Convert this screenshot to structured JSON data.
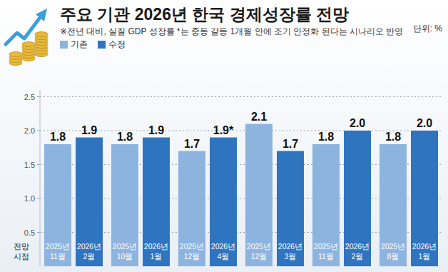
{
  "chart_data": {
    "type": "bar",
    "title": "주요 기관 2026년 한국 경제성장률 전망",
    "subtitle": "※전년 대비, 실질 GDP 성장률  *는 중동 갈등 1개월 안에 조기 안정화 된다는 시나리오 반영",
    "unit": "단위: %",
    "date_label": "전망 시점",
    "categories": [
      null,
      null,
      null,
      null,
      null,
      null
    ],
    "series": [
      {
        "name": "기존",
        "color": "#8db4df",
        "values": [
          1.8,
          1.8,
          1.7,
          2.1,
          1.8,
          1.8
        ],
        "value_labels": [
          "1.8",
          "1.8",
          "1.7",
          "2.1",
          "1.8",
          "1.8"
        ],
        "dates": [
          "2025년 11월",
          "2025년 10월",
          "2025년 12월",
          "2025년 12월",
          "2025년 11월",
          "2025년 8월"
        ]
      },
      {
        "name": "수정",
        "color": "#2f74bf",
        "values": [
          1.9,
          1.9,
          1.9,
          1.7,
          2.0,
          2.0
        ],
        "value_labels": [
          "1.9",
          "1.9",
          "1.9*",
          "1.7",
          "2.0",
          "2.0"
        ],
        "dates": [
          "2026년 2월",
          "2026년 1월",
          "2026년 4월",
          "2026년 3월",
          "2026년 2월",
          "2026년 1월"
        ]
      }
    ],
    "ylim": [
      0,
      2.6
    ],
    "yticks": [
      0.5,
      {
        "value": 1,
        "label": "1.0"
      },
      1.5,
      {
        "value": 2,
        "label": "2.0"
      },
      2.5
    ],
    "grid": true,
    "legend": "top-left",
    "data_labels": true
  }
}
